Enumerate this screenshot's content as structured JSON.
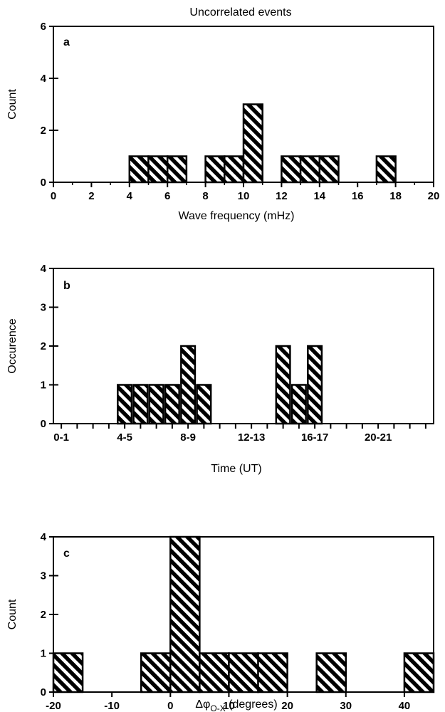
{
  "figure": {
    "title": "Uncorrelated events"
  },
  "chart_data": [
    {
      "type": "bar",
      "panel": "a",
      "xlabel": "Wave frequency (mHz)",
      "ylabel": "Count",
      "xlim": [
        0,
        20
      ],
      "ylim": [
        0,
        6
      ],
      "xticks": [
        0,
        2,
        4,
        6,
        8,
        10,
        12,
        14,
        16,
        18,
        20
      ],
      "yticks": [
        0,
        2,
        4,
        6
      ],
      "bin_width": 1,
      "bins": [
        {
          "x0": 4,
          "x1": 5,
          "value": 1
        },
        {
          "x0": 5,
          "x1": 6,
          "value": 1
        },
        {
          "x0": 6,
          "x1": 7,
          "value": 1
        },
        {
          "x0": 8,
          "x1": 9,
          "value": 1
        },
        {
          "x0": 9,
          "x1": 10,
          "value": 1
        },
        {
          "x0": 10,
          "x1": 11,
          "value": 3
        },
        {
          "x0": 12,
          "x1": 13,
          "value": 1
        },
        {
          "x0": 13,
          "x1": 14,
          "value": 1
        },
        {
          "x0": 14,
          "x1": 15,
          "value": 1
        },
        {
          "x0": 17,
          "x1": 18,
          "value": 1
        }
      ],
      "fill": "diagonal-hatch",
      "grid": false
    },
    {
      "type": "bar",
      "panel": "b",
      "xlabel": "Time (UT)",
      "ylabel": "Occurence",
      "xlim": [
        0,
        24
      ],
      "ylim": [
        0,
        4
      ],
      "yticks": [
        0,
        1,
        2,
        3,
        4
      ],
      "xtick_labels": [
        {
          "label": "0-1",
          "hour": 0
        },
        {
          "label": "4-5",
          "hour": 4
        },
        {
          "label": "8-9",
          "hour": 8
        },
        {
          "label": "12-13",
          "hour": 12
        },
        {
          "label": "16-17",
          "hour": 16
        },
        {
          "label": "20-21",
          "hour": 20
        }
      ],
      "categories": [
        "4-5",
        "5-6",
        "6-7",
        "7-8",
        "8-9",
        "9-10",
        "14-15",
        "15-16",
        "16-17"
      ],
      "hours": [
        4,
        5,
        6,
        7,
        8,
        9,
        14,
        15,
        16
      ],
      "values": [
        1,
        1,
        1,
        1,
        2,
        1,
        2,
        1,
        2
      ],
      "fill": "diagonal-hatch",
      "grid": false
    },
    {
      "type": "bar",
      "panel": "c",
      "xlabel": "Δφ",
      "xlabel_subscript": "O-X",
      "xlabel_suffix": " (degrees)",
      "ylabel": "Count",
      "xlim": [
        -20,
        45
      ],
      "ylim": [
        0,
        4
      ],
      "xticks": [
        -20,
        -10,
        0,
        10,
        20,
        30,
        40
      ],
      "yticks": [
        0,
        1,
        2,
        3,
        4
      ],
      "bin_width": 5,
      "bins": [
        {
          "x0": -20,
          "x1": -15,
          "value": 1
        },
        {
          "x0": -5,
          "x1": 0,
          "value": 1
        },
        {
          "x0": 0,
          "x1": 5,
          "value": 4
        },
        {
          "x0": 5,
          "x1": 10,
          "value": 1
        },
        {
          "x0": 10,
          "x1": 15,
          "value": 1
        },
        {
          "x0": 15,
          "x1": 20,
          "value": 1
        },
        {
          "x0": 25,
          "x1": 30,
          "value": 1
        },
        {
          "x0": 40,
          "x1": 45,
          "value": 1
        }
      ],
      "fill": "diagonal-hatch",
      "grid": false
    }
  ]
}
